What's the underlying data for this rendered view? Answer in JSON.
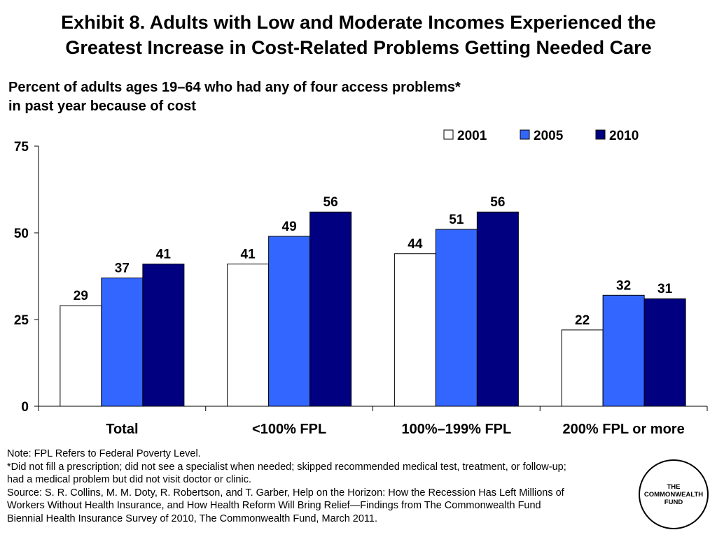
{
  "title_line1": "Exhibit 8. Adults with Low and Moderate Incomes Experienced the",
  "title_line2": "Greatest Increase in Cost-Related Problems Getting Needed Care",
  "subtitle_line1": "Percent of adults ages 19–64 who had any of four access problems*",
  "subtitle_line2": "in past year because of cost",
  "chart_data": {
    "type": "bar",
    "categories": [
      "Total",
      "<100% FPL",
      "100%–199% FPL",
      "200% FPL or more"
    ],
    "series": [
      {
        "name": "2001",
        "values": [
          29,
          41,
          44,
          22
        ],
        "color": "#ffffff"
      },
      {
        "name": "2005",
        "values": [
          37,
          49,
          51,
          32
        ],
        "color": "#3366ff"
      },
      {
        "name": "2010",
        "values": [
          41,
          56,
          56,
          31
        ],
        "color": "#000080"
      }
    ],
    "ylim": [
      0,
      75
    ],
    "yticks": [
      0,
      25,
      50,
      75
    ],
    "grid": false,
    "legend_position": "top-right",
    "title": "",
    "xlabel": "",
    "ylabel": ""
  },
  "notes": [
    "Note: FPL Refers to Federal Poverty Level.",
    "*Did not fill a prescription; did not see a specialist when needed; skipped recommended medical test, treatment, or follow-up;",
    "had a medical problem but did not visit doctor or clinic.",
    "Source: S. R. Collins, M. M. Doty, R. Robertson, and T. Garber, Help on the Horizon: How the Recession Has Left Millions of",
    "Workers Without Health Insurance, and How Health Reform Will Bring Relief—Findings from The Commonwealth Fund",
    "Biennial Health Insurance Survey of 2010, The Commonwealth Fund, March 2011."
  ],
  "logo": {
    "line1": "THE",
    "line2": "COMMONWEALTH",
    "line3": "FUND"
  }
}
